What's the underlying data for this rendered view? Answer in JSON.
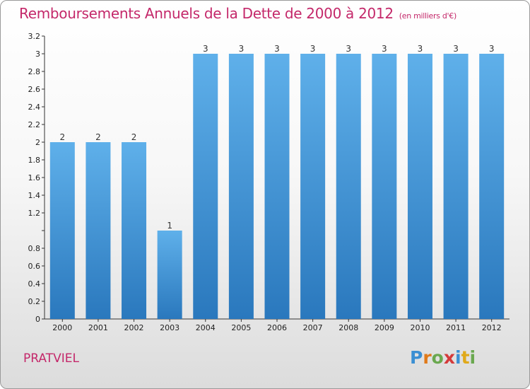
{
  "header": {
    "title": "Remboursements Annuels de la Dette de 2000 à 2012",
    "unit": "(en milliers d'€)"
  },
  "footer": {
    "commune": "PRATVIEL",
    "logo_letters": [
      "P",
      "r",
      "o",
      "x",
      "i",
      "t",
      "i"
    ]
  },
  "chart_data": {
    "type": "bar",
    "title": "Remboursements Annuels de la Dette de 2000 à 2012",
    "categories": [
      "2000",
      "2001",
      "2002",
      "2003",
      "2004",
      "2005",
      "2006",
      "2007",
      "2008",
      "2009",
      "2010",
      "2011",
      "2012"
    ],
    "values": [
      2,
      2,
      2,
      1,
      3,
      3,
      3,
      3,
      3,
      3,
      3,
      3,
      3
    ],
    "data_labels": [
      "2",
      "2",
      "2",
      "1",
      "3",
      "3",
      "3",
      "3",
      "3",
      "3",
      "3",
      "3",
      "3"
    ],
    "y_ticks": [
      0,
      0.2,
      0.4,
      0.6,
      0.8,
      1,
      1.2,
      1.4,
      1.6,
      1.8,
      2,
      2.2,
      2.4,
      2.6,
      2.8,
      3,
      3.2
    ],
    "y_tick_labels": [
      "0",
      "0.2",
      "0.4",
      "0.6",
      "0.8",
      "",
      "1.2",
      "1.4",
      "1.6",
      "1.8",
      "2",
      "2.2",
      "2.4",
      "2.6",
      "2.8",
      "3",
      "3.2"
    ],
    "ylim": [
      0,
      3.2
    ],
    "xlabel": "",
    "ylabel": "",
    "grid": false,
    "bar_color": "#3d8fd3"
  }
}
